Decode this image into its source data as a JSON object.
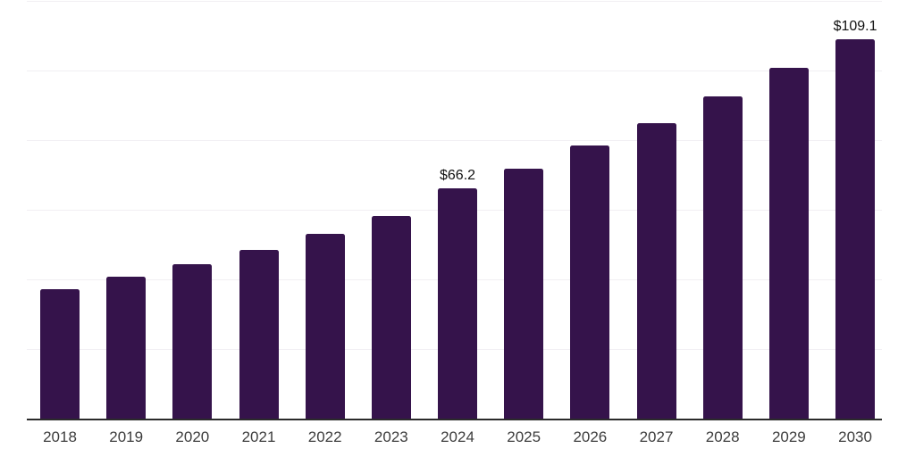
{
  "chart_data": {
    "type": "bar",
    "title": "",
    "xlabel": "",
    "ylabel": "",
    "categories": [
      "2018",
      "2019",
      "2020",
      "2021",
      "2022",
      "2023",
      "2024",
      "2025",
      "2026",
      "2027",
      "2028",
      "2029",
      "2030"
    ],
    "values": [
      37.2,
      40.8,
      44.4,
      48.6,
      53.0,
      58.2,
      66.2,
      71.9,
      78.5,
      85.0,
      92.5,
      100.7,
      109.1
    ],
    "value_labels": {
      "2024": "$66.2",
      "2030": "$109.1"
    },
    "ylim": [
      0,
      120
    ],
    "gridline_values": [
      20,
      40,
      60,
      80,
      100,
      120
    ],
    "grid": true,
    "legend": false,
    "colors": {
      "bar": "#35134B",
      "gridline": "#f1eff3",
      "axis_line": "#2b2b2b",
      "tick_label": "#3d3d3d",
      "value_label": "#111111"
    }
  }
}
